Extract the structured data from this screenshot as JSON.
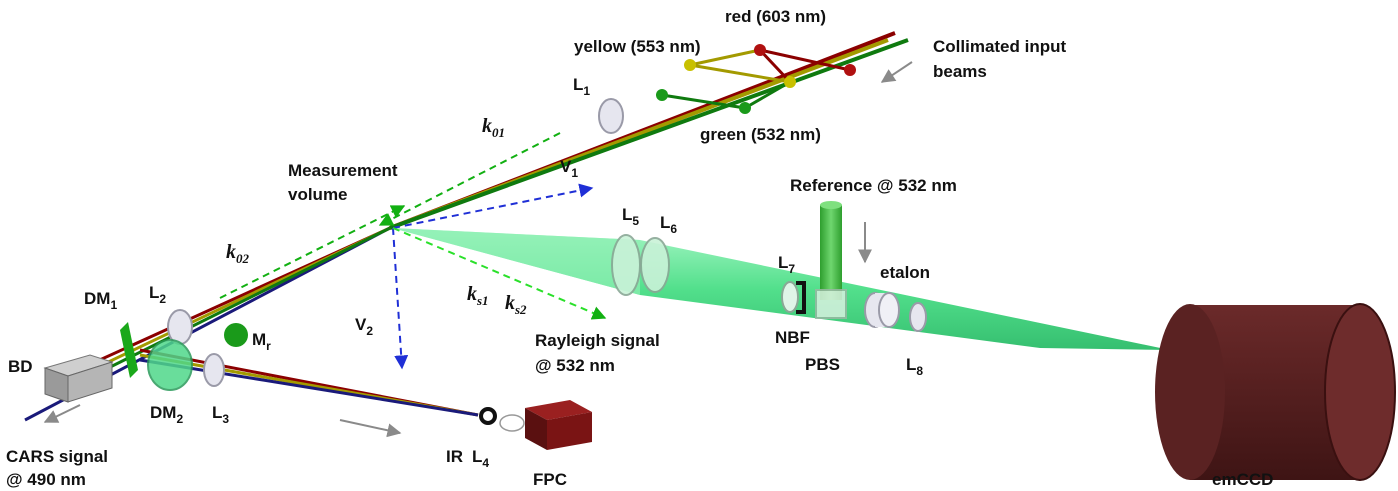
{
  "labels": {
    "red": "red (603 nm)",
    "yellow": "yellow (553 nm)",
    "green": "green (532 nm)",
    "collimated_line1": "Collimated input",
    "collimated_line2": "beams",
    "measurement_line1": "Measurement",
    "measurement_line2": "volume",
    "reference": "Reference @ 532 nm",
    "rayleigh_line1": "Rayleigh signal",
    "rayleigh_line2": "@ 532 nm",
    "cars_line1": "CARS signal",
    "cars_line2": "@ 490 nm",
    "etalon": "etalon",
    "nbf": "NBF",
    "pbs": "PBS",
    "bd": "BD",
    "ir": "IR",
    "fpc": "FPC",
    "emccd": "emCCD",
    "L": "L",
    "V": "V",
    "DM": "DM",
    "M": "M",
    "k": "k",
    "sub_1": "1",
    "sub_2": "2",
    "sub_3": "3",
    "sub_4": "4",
    "sub_5": "5",
    "sub_6": "6",
    "sub_7": "7",
    "sub_8": "8",
    "sub_r": "r",
    "sub_01": "01",
    "sub_02": "02",
    "sub_s1": "s1",
    "sub_s2": "s2"
  },
  "colors": {
    "red_beam": "#8b0000",
    "yellow_beam": "#a39a00",
    "green_beam": "#0f7a0f",
    "cars_beam": "#1a1a7a",
    "rayleigh_cone": "#5fe89a",
    "vector_blue": "#1f2fd6",
    "vector_green": "#12b012",
    "emccd_body": "#5a2222",
    "fpc_body": "#7a1414"
  }
}
